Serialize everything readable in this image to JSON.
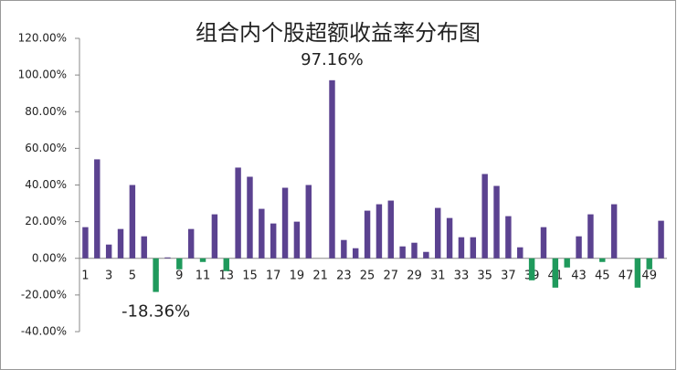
{
  "chart_data": {
    "type": "bar",
    "title": "组合内个股超额收益率分布图",
    "categories": [
      "1",
      null,
      "3",
      null,
      "5",
      null,
      "7",
      null,
      "9",
      null,
      "11",
      null,
      "13",
      null,
      "15",
      null,
      "17",
      null,
      "19",
      null,
      "21",
      null,
      "23",
      null,
      "25",
      null,
      "27",
      null,
      "29",
      null,
      "31",
      null,
      "33",
      null,
      "35",
      null,
      "37",
      null,
      "39",
      null,
      "41",
      null,
      "43",
      null,
      "45",
      null,
      "47",
      null,
      "49",
      null
    ],
    "series": [
      {
        "color": "#5b4290",
        "negative_color": "#1f9a5c",
        "values": [
          17,
          54,
          7.5,
          16,
          40,
          12,
          -18.36,
          0.5,
          -6,
          16,
          -2,
          24,
          -7,
          49.5,
          44.5,
          27,
          19,
          38.5,
          20,
          40,
          0,
          97.16,
          10,
          5.5,
          26,
          29.5,
          31.5,
          6.5,
          8.5,
          3.5,
          27.5,
          22,
          11.5,
          11.5,
          46,
          39.5,
          23,
          6,
          -12,
          17,
          -16,
          -5,
          12,
          24,
          -2,
          29.5,
          0,
          -16,
          -6,
          20.5
        ],
        "value_labels": [
          null,
          null,
          null,
          null,
          null,
          null,
          "-18.36%",
          null,
          null,
          null,
          null,
          null,
          null,
          null,
          null,
          null,
          null,
          null,
          null,
          null,
          null,
          "97.16%",
          null,
          null,
          null,
          null,
          null,
          null,
          null,
          null,
          null,
          null,
          null,
          null,
          null,
          null,
          null,
          null,
          null,
          null,
          null,
          null,
          null,
          null,
          null,
          null,
          null,
          null,
          null,
          null
        ]
      }
    ],
    "ylim": [
      -40,
      120
    ],
    "yticks": [
      {
        "value": -40,
        "label": "-40.00%"
      },
      {
        "value": -20,
        "label": "-20.00%"
      },
      {
        "value": 0,
        "label": "0.00%"
      },
      {
        "value": 20,
        "label": "20.00%"
      },
      {
        "value": 40,
        "label": "40.00%"
      },
      {
        "value": 60,
        "label": "60.00%"
      },
      {
        "value": 80,
        "label": "80.00%"
      },
      {
        "value": 100,
        "label": "100.00%"
      },
      {
        "value": 120,
        "label": "120.00%"
      }
    ],
    "grid": false
  }
}
